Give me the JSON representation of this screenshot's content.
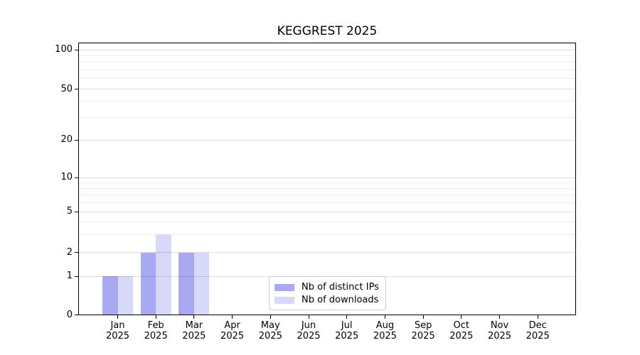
{
  "title": "KEGGREST 2025",
  "legend": {
    "items": [
      {
        "label": "Nb of distinct IPs",
        "color": "#a8a8f3"
      },
      {
        "label": "Nb of downloads",
        "color": "#d8d8f8"
      }
    ]
  },
  "chart_data": {
    "type": "bar",
    "title": "KEGGREST 2025",
    "categories": [
      "Jan",
      "Feb",
      "Mar",
      "Apr",
      "May",
      "Jun",
      "Jul",
      "Aug",
      "Sep",
      "Oct",
      "Nov",
      "Dec"
    ],
    "year_label": "2025",
    "series": [
      {
        "name": "Nb of distinct IPs",
        "color": "#a8a8f3",
        "values": [
          1,
          2,
          2,
          0,
          0,
          0,
          0,
          0,
          0,
          0,
          0,
          0
        ]
      },
      {
        "name": "Nb of downloads",
        "color": "#d8d8f8",
        "values": [
          1,
          3,
          2,
          0,
          0,
          0,
          0,
          0,
          0,
          0,
          0,
          0
        ]
      }
    ],
    "y_axis": {
      "scale": "log-like",
      "range": [
        0,
        100
      ],
      "ticks": [
        0,
        1,
        2,
        5,
        10,
        20,
        50,
        100
      ],
      "minor_ticks": [
        3,
        4,
        6,
        7,
        8,
        9,
        30,
        40,
        60,
        70,
        80,
        90
      ]
    },
    "grid": true,
    "legend_position": "bottom-center",
    "colors": {
      "axis": "#000000",
      "major_grid": "#d9d9d9",
      "minor_grid": "#ededed",
      "text": "#000000"
    }
  }
}
